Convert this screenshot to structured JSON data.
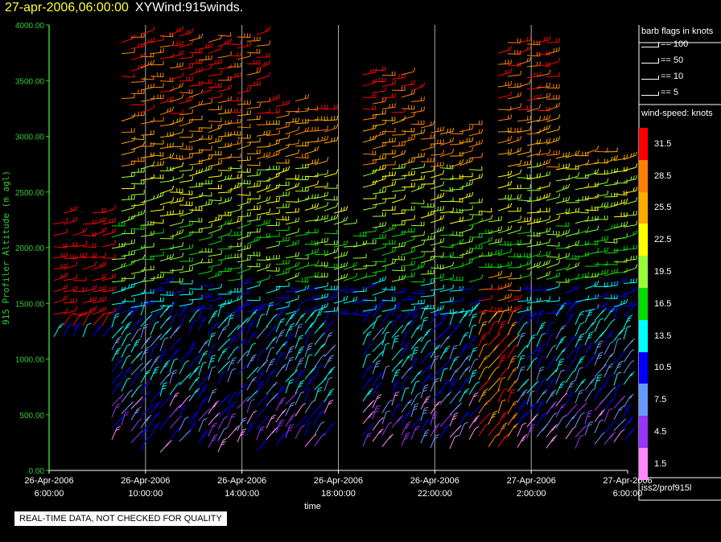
{
  "header": {
    "timestamp": "27-apr-2006,06:00:00",
    "title": "XYWind:915winds."
  },
  "qc_notice": "REAL-TIME DATA, NOT CHECKED FOR QUALITY",
  "source_label": "iss2/prof915l",
  "legend": {
    "barb_title": "barb flags in knots",
    "barb_items": [
      "== 100",
      "== 50",
      "== 10",
      "== 5"
    ],
    "speed_title": "wind-speed: knots",
    "speed_bins": [
      {
        "label": "31.5",
        "color": "#ff0000"
      },
      {
        "label": "28.5",
        "color": "#ff8000"
      },
      {
        "label": "25.5",
        "color": "#ffaa00"
      },
      {
        "label": "22.5",
        "color": "#ffff00"
      },
      {
        "label": "19.5",
        "color": "#99ff33"
      },
      {
        "label": "16.5",
        "color": "#00dd00"
      },
      {
        "label": "13.5",
        "color": "#00ffff"
      },
      {
        "label": "10.5",
        "color": "#0000ff"
      },
      {
        "label": "7.5",
        "color": "#6699ff"
      },
      {
        "label": "4.5",
        "color": "#9933ff"
      },
      {
        "label": "1.5",
        "color": "#ff88ff"
      }
    ]
  },
  "chart_data": {
    "type": "scatter",
    "title": "",
    "xlabel": "time",
    "ylabel": "915 Profiler Altitude (m agl)",
    "ylim": [
      0,
      4000
    ],
    "yticks": [
      "0.00",
      "500.00",
      "1000.00",
      "1500.00",
      "2000.00",
      "2500.00",
      "3000.00",
      "3500.00",
      "4000.00"
    ],
    "xlim": [
      "26-Apr-2006 6:00:00",
      "27-Apr-2006 6:00:00"
    ],
    "xticks": [
      {
        "date": "26-Apr-2006",
        "time": "6:00:00"
      },
      {
        "date": "26-Apr-2006",
        "time": "10:00:00"
      },
      {
        "date": "26-Apr-2006",
        "time": "14:00:00"
      },
      {
        "date": "26-Apr-2006",
        "time": "18:00:00"
      },
      {
        "date": "26-Apr-2006",
        "time": "22:00:00"
      },
      {
        "date": "27-Apr-2006",
        "time": "2:00:00"
      },
      {
        "date": "27-Apr-2006",
        "time": "6:00:00"
      }
    ],
    "grid": "vertical",
    "colors": {
      "axis": "#33cc33",
      "grid": "#aaaaaa"
    }
  }
}
